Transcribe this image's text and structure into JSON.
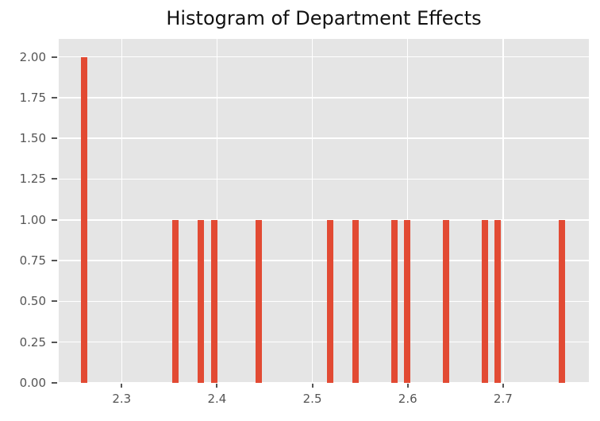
{
  "chart_data": {
    "type": "bar",
    "subtype": "histogram",
    "title": "Histogram of Department Effects",
    "xlabel": "",
    "ylabel": "",
    "grid": true,
    "legend": false,
    "plot_bg_color": "#e5e5e5",
    "grid_color": "#ffffff",
    "bar_color": "#e24a33",
    "tick_color": "#555555",
    "title_color": "#111111",
    "xlim": [
      2.234,
      2.79
    ],
    "ylim": [
      0,
      2.11
    ],
    "bin_width_data_units": 0.007,
    "bars": [
      {
        "value": 2.261,
        "count": 2
      },
      {
        "value": 2.356,
        "count": 1
      },
      {
        "value": 2.383,
        "count": 1
      },
      {
        "value": 2.397,
        "count": 1
      },
      {
        "value": 2.444,
        "count": 1
      },
      {
        "value": 2.519,
        "count": 1
      },
      {
        "value": 2.545,
        "count": 1
      },
      {
        "value": 2.586,
        "count": 1
      },
      {
        "value": 2.599,
        "count": 1
      },
      {
        "value": 2.64,
        "count": 1
      },
      {
        "value": 2.681,
        "count": 1
      },
      {
        "value": 2.694,
        "count": 1
      },
      {
        "value": 2.762,
        "count": 1
      }
    ],
    "xticks": [
      {
        "value": 2.3,
        "label": "2.3"
      },
      {
        "value": 2.4,
        "label": "2.4"
      },
      {
        "value": 2.5,
        "label": "2.5"
      },
      {
        "value": 2.6,
        "label": "2.6"
      },
      {
        "value": 2.7,
        "label": "2.7"
      }
    ],
    "yticks": [
      {
        "value": 0.0,
        "label": "0.00"
      },
      {
        "value": 0.25,
        "label": "0.25"
      },
      {
        "value": 0.5,
        "label": "0.50"
      },
      {
        "value": 0.75,
        "label": "0.75"
      },
      {
        "value": 1.0,
        "label": "1.00"
      },
      {
        "value": 1.25,
        "label": "1.25"
      },
      {
        "value": 1.5,
        "label": "1.50"
      },
      {
        "value": 1.75,
        "label": "1.75"
      },
      {
        "value": 2.0,
        "label": "2.00"
      }
    ]
  }
}
